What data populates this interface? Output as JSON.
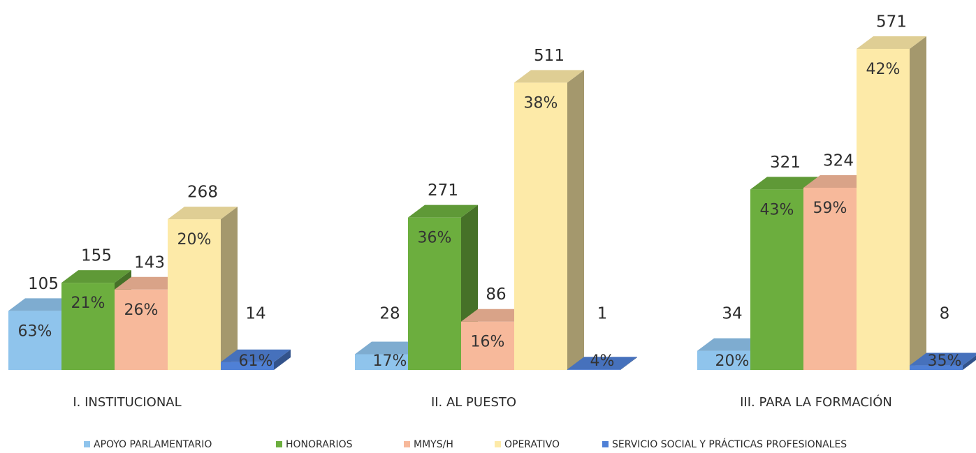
{
  "chart_data": {
    "type": "bar",
    "categories": [
      "I. INSTITUCIONAL",
      "II. AL PUESTO",
      "III. PARA LA FORMACIÓN"
    ],
    "series": [
      {
        "name": "APOYO PARLAMENTARIO",
        "color": "#8fc4ec",
        "values": [
          105,
          28,
          34
        ],
        "shares": [
          63,
          17,
          20
        ],
        "share_labels": [
          "63%",
          "17%",
          "20%"
        ]
      },
      {
        "name": "HONORARIOS",
        "color": "#6cae3e",
        "values": [
          155,
          271,
          321
        ],
        "shares": [
          21,
          36,
          43
        ],
        "share_labels": [
          "21%",
          "36%",
          "43%"
        ]
      },
      {
        "name": "MMYS/H",
        "color": "#f7b99b",
        "values": [
          143,
          86,
          324
        ],
        "shares": [
          26,
          16,
          59
        ],
        "share_labels": [
          "26%",
          "16%",
          "59%"
        ]
      },
      {
        "name": "OPERATIVO",
        "color": "#fdeaa8",
        "values": [
          268,
          511,
          571
        ],
        "shares": [
          20,
          38,
          42
        ],
        "share_labels": [
          "20%",
          "38%",
          "42%"
        ]
      },
      {
        "name": "SERVICIO SOCIAL Y PRÁCTICAS PROFESIONALES",
        "color": "#4f80d6",
        "values": [
          14,
          1,
          8
        ],
        "shares": [
          61,
          4,
          35
        ],
        "share_labels": [
          "61%",
          "4%",
          "35%"
        ]
      }
    ]
  }
}
